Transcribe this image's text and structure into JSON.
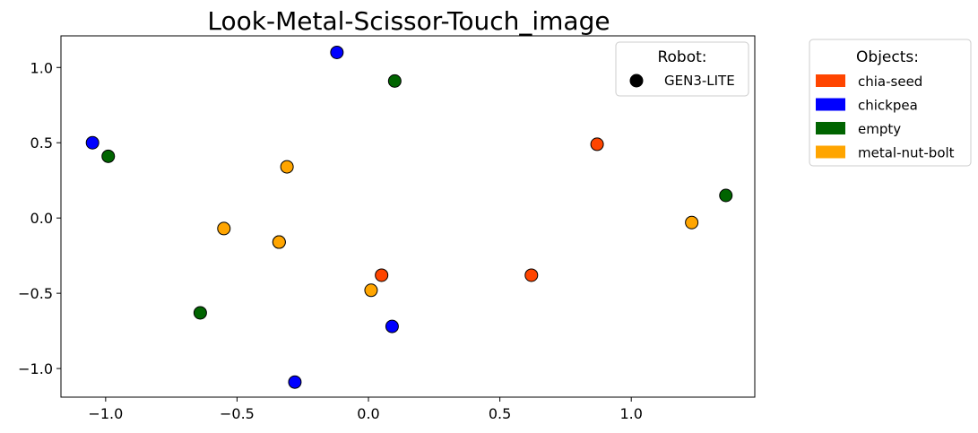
{
  "chart_data": {
    "type": "scatter",
    "title": "Look-Metal-Scissor-Touch_image",
    "xlabel": "",
    "ylabel": "",
    "xlim": [
      -1.17,
      1.47
    ],
    "ylim": [
      -1.19,
      1.21
    ],
    "xticks": [
      -1.0,
      -0.5,
      0.0,
      0.5,
      1.0
    ],
    "xtick_labels": [
      "−1.0",
      "−0.5",
      "0.0",
      "0.5",
      "1.0"
    ],
    "yticks": [
      -1.0,
      -0.5,
      0.0,
      0.5,
      1.0
    ],
    "ytick_labels": [
      "−1.0",
      "−0.5",
      "0.0",
      "0.5",
      "1.0"
    ],
    "grid": false,
    "robot_legend": {
      "title": "Robot:",
      "placement": "top-right",
      "entries": [
        {
          "label": "GEN3-LITE",
          "color": "#000000"
        }
      ]
    },
    "objects_legend": {
      "title": "Objects:",
      "placement": "outside-right",
      "entries": [
        {
          "label": "chia-seed",
          "color": "#ff4500"
        },
        {
          "label": "chickpea",
          "color": "#0000ff"
        },
        {
          "label": "empty",
          "color": "#006400"
        },
        {
          "label": "metal-nut-bolt",
          "color": "#ffa500"
        }
      ]
    },
    "series": [
      {
        "object": "chia-seed",
        "color": "#ff4500",
        "points": [
          [
            0.87,
            0.49
          ],
          [
            0.05,
            -0.38
          ],
          [
            0.62,
            -0.38
          ]
        ]
      },
      {
        "object": "chickpea",
        "color": "#0000ff",
        "points": [
          [
            -0.12,
            1.1
          ],
          [
            -1.05,
            0.5
          ],
          [
            0.09,
            -0.72
          ],
          [
            -0.28,
            -1.09
          ]
        ]
      },
      {
        "object": "empty",
        "color": "#006400",
        "points": [
          [
            0.1,
            0.91
          ],
          [
            -0.99,
            0.41
          ],
          [
            1.36,
            0.15
          ],
          [
            -0.64,
            -0.63
          ]
        ]
      },
      {
        "object": "metal-nut-bolt",
        "color": "#ffa500",
        "points": [
          [
            -0.31,
            0.34
          ],
          [
            -0.55,
            -0.07
          ],
          [
            -0.34,
            -0.16
          ],
          [
            -0.34,
            -0.16
          ],
          [
            0.01,
            -0.48
          ],
          [
            1.23,
            -0.03
          ]
        ]
      }
    ]
  }
}
